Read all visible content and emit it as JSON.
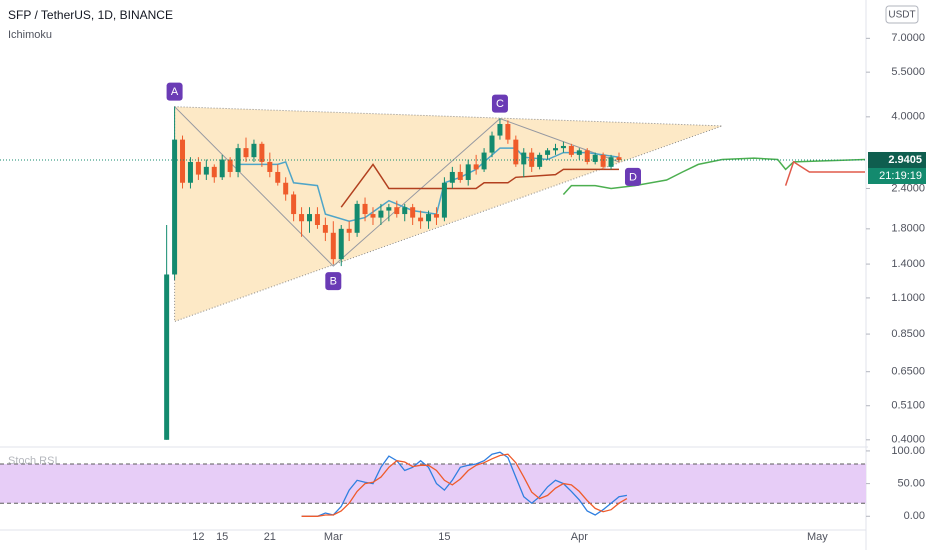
{
  "chart_data": [
    {
      "type": "candlestick",
      "title": "SFP / TetherUS, 1D, BINANCE",
      "subtitle": "Ichimoku",
      "currency_button": "USDT",
      "log_scale": true,
      "xlim": [
        -13,
        96
      ],
      "xticks": [
        15,
        {
          "value": 29,
          "label": "Mar"
        },
        {
          "value": 43,
          "label": "15"
        },
        {
          "value": 60,
          "label": "Apr"
        },
        12,
        21,
        {
          "value": 90,
          "label": "May"
        }
      ],
      "ylim": [
        0.38,
        9.2
      ],
      "yticks": [
        {
          "value": 7,
          "label": "7.0000"
        },
        {
          "value": 5.5,
          "label": "5.5000"
        },
        {
          "value": 4,
          "label": "4.0000"
        },
        {
          "value": 2.4,
          "label": "2.4000"
        },
        {
          "value": 1.8,
          "label": "1.8000"
        },
        {
          "value": 1.4,
          "label": "1.4000"
        },
        {
          "value": 1.1,
          "label": "1.1000"
        },
        {
          "value": 0.85,
          "label": "0.8500"
        },
        {
          "value": 0.65,
          "label": "0.6500"
        },
        {
          "value": 0.51,
          "label": "0.5100"
        },
        {
          "value": 0.4,
          "label": "0.4000"
        }
      ],
      "up_color": "#138a6e",
      "down_color": "#ef5b2b",
      "candles": {
        "x": [
          8,
          9,
          10,
          11,
          12,
          13,
          14,
          15,
          16,
          17,
          18,
          19,
          20,
          21,
          22,
          23,
          24,
          25,
          26,
          27,
          28,
          29,
          30,
          31,
          32,
          33,
          34,
          35,
          36,
          37,
          38,
          39,
          40,
          41,
          42,
          43,
          44,
          45,
          46,
          47,
          48,
          49,
          50,
          51,
          52,
          53,
          54,
          55,
          56,
          57,
          58,
          59,
          60,
          61,
          62,
          63,
          64,
          65
        ],
        "open": [
          0.4,
          1.3,
          3.4,
          2.5,
          2.9,
          2.65,
          2.8,
          2.6,
          2.95,
          2.7,
          3.2,
          3.0,
          3.3,
          2.9,
          2.7,
          2.5,
          2.3,
          2.0,
          1.9,
          2.0,
          1.85,
          1.75,
          1.45,
          1.8,
          1.75,
          2.15,
          2.0,
          1.95,
          2.05,
          2.1,
          2.0,
          2.1,
          1.95,
          1.9,
          2.0,
          1.95,
          2.5,
          2.7,
          2.55,
          2.85,
          2.75,
          3.1,
          3.5,
          3.8,
          3.4,
          2.85,
          3.1,
          2.8,
          3.05,
          3.15,
          3.2,
          3.25,
          3.05,
          3.15,
          2.9,
          3.05,
          2.8,
          3.0
        ],
        "high": [
          1.85,
          4.3,
          3.5,
          3.0,
          3.0,
          2.95,
          2.85,
          3.05,
          3.0,
          3.3,
          3.45,
          3.4,
          3.35,
          3.1,
          2.85,
          2.6,
          2.35,
          2.1,
          2.1,
          2.1,
          1.95,
          1.9,
          1.85,
          1.9,
          2.2,
          2.25,
          2.1,
          2.15,
          2.15,
          2.2,
          2.15,
          2.15,
          2.05,
          2.05,
          2.1,
          2.6,
          2.8,
          2.85,
          2.95,
          3.05,
          3.2,
          3.6,
          3.95,
          3.9,
          3.5,
          3.2,
          3.2,
          3.1,
          3.2,
          3.3,
          3.35,
          3.3,
          3.2,
          3.2,
          3.1,
          3.1,
          3.05,
          3.1
        ],
        "low": [
          0.4,
          1.25,
          2.4,
          2.4,
          2.55,
          2.55,
          2.5,
          2.55,
          2.6,
          2.6,
          2.9,
          2.9,
          2.8,
          2.6,
          2.45,
          2.2,
          1.9,
          1.7,
          1.75,
          1.8,
          1.65,
          1.4,
          1.38,
          1.65,
          1.7,
          1.9,
          1.85,
          1.85,
          1.9,
          1.95,
          1.9,
          1.85,
          1.8,
          1.8,
          1.85,
          1.9,
          2.4,
          2.5,
          2.45,
          2.65,
          2.7,
          3.0,
          3.4,
          3.3,
          2.8,
          2.6,
          2.7,
          2.75,
          2.95,
          3.05,
          3.1,
          3.0,
          2.95,
          2.85,
          2.85,
          2.75,
          2.75,
          2.9
        ],
        "close": [
          1.3,
          3.4,
          2.5,
          2.9,
          2.65,
          2.8,
          2.6,
          2.95,
          2.7,
          3.2,
          3.0,
          3.3,
          2.9,
          2.7,
          2.5,
          2.3,
          2.0,
          1.9,
          2.0,
          1.85,
          1.75,
          1.45,
          1.8,
          1.75,
          2.15,
          2.0,
          1.95,
          2.05,
          2.1,
          2.0,
          2.1,
          1.95,
          1.9,
          2.0,
          1.95,
          2.5,
          2.7,
          2.55,
          2.85,
          2.75,
          3.1,
          3.5,
          3.8,
          3.4,
          2.85,
          3.1,
          2.8,
          3.05,
          3.15,
          3.2,
          3.25,
          3.05,
          3.15,
          2.9,
          3.05,
          2.8,
          3.0,
          2.94
        ]
      },
      "lines": [
        {
          "color": "#4fa5c8",
          "x": [
            17,
            22,
            23,
            24,
            27,
            28,
            31,
            33,
            36,
            39,
            42,
            43,
            45,
            47,
            48,
            50,
            52,
            53,
            56,
            58,
            61,
            63,
            65
          ],
          "values": [
            2.85,
            2.85,
            2.9,
            2.5,
            2.45,
            2.0,
            1.9,
            1.95,
            2.2,
            2.05,
            2.0,
            2.5,
            2.6,
            2.75,
            2.9,
            3.2,
            3.2,
            3.0,
            2.95,
            3.1,
            3.1,
            3.05,
            3.0
          ]
        },
        {
          "color": "#b2401f",
          "x": [
            30,
            34,
            36,
            47,
            48,
            51,
            52,
            57,
            58,
            65
          ],
          "values": [
            2.1,
            2.85,
            2.4,
            2.4,
            2.5,
            2.5,
            2.6,
            2.65,
            2.75,
            2.75
          ]
        },
        {
          "color": "#4caf50",
          "x": [
            58,
            59,
            62,
            64,
            67,
            71,
            73,
            75,
            78,
            82,
            85,
            86,
            87,
            96
          ],
          "values": [
            2.3,
            2.45,
            2.45,
            2.4,
            2.45,
            2.55,
            2.7,
            2.85,
            2.95,
            2.98,
            2.95,
            2.75,
            2.9,
            2.95
          ]
        },
        {
          "color": "#e05a4a",
          "x": [
            86,
            87,
            89,
            96
          ],
          "values": [
            2.45,
            2.9,
            2.7,
            2.7
          ]
        }
      ],
      "last_price": {
        "value": 2.9405,
        "label": "2.9405"
      },
      "countdown": "21:19:19",
      "pattern": {
        "points": [
          {
            "label": "A",
            "x": 9,
            "y": 4.3
          },
          {
            "label": "B",
            "x": 29,
            "y": 1.38
          },
          {
            "label": "C",
            "x": 50,
            "y": 3.95
          },
          {
            "label": "D",
            "x": 65,
            "y": 2.9
          }
        ],
        "triangle": [
          {
            "x": 9,
            "y": 4.3
          },
          {
            "x": 78,
            "y": 3.75
          },
          {
            "x": 9,
            "y": 0.93
          }
        ]
      }
    },
    {
      "type": "line",
      "title": "Stoch RSI",
      "xlim": [
        -13,
        96
      ],
      "ylim": [
        -21,
        106
      ],
      "yticks": [
        {
          "value": 100,
          "label": "100.00"
        },
        {
          "value": 50,
          "label": "50.00"
        },
        {
          "value": 0,
          "label": "0.00"
        }
      ],
      "bands": [
        20,
        80
      ],
      "band_color": "#e7cdf7",
      "x": [
        25,
        27,
        28,
        29,
        30,
        31,
        32,
        33,
        34,
        35,
        36,
        37,
        38,
        39,
        40,
        41,
        42,
        43,
        44,
        45,
        46,
        47,
        48,
        49,
        50,
        51,
        52,
        53,
        54,
        55,
        56,
        57,
        58,
        59,
        60,
        61,
        62,
        63,
        64,
        65,
        66
      ],
      "series": [
        {
          "color": "#2f7fe0",
          "values": [
            0,
            0,
            5,
            2,
            15,
            40,
            55,
            52,
            50,
            75,
            92,
            85,
            70,
            75,
            85,
            75,
            50,
            40,
            55,
            75,
            78,
            80,
            85,
            95,
            98,
            90,
            60,
            30,
            20,
            30,
            45,
            55,
            50,
            38,
            25,
            8,
            2,
            10,
            20,
            30,
            32
          ]
        },
        {
          "color": "#ef5b2b",
          "values": [
            0,
            0,
            2,
            2,
            8,
            20,
            38,
            50,
            52,
            60,
            75,
            85,
            83,
            76,
            78,
            78,
            70,
            55,
            48,
            57,
            70,
            78,
            82,
            88,
            93,
            95,
            82,
            60,
            37,
            27,
            32,
            43,
            50,
            48,
            38,
            24,
            12,
            7,
            10,
            20,
            27
          ]
        }
      ]
    }
  ]
}
